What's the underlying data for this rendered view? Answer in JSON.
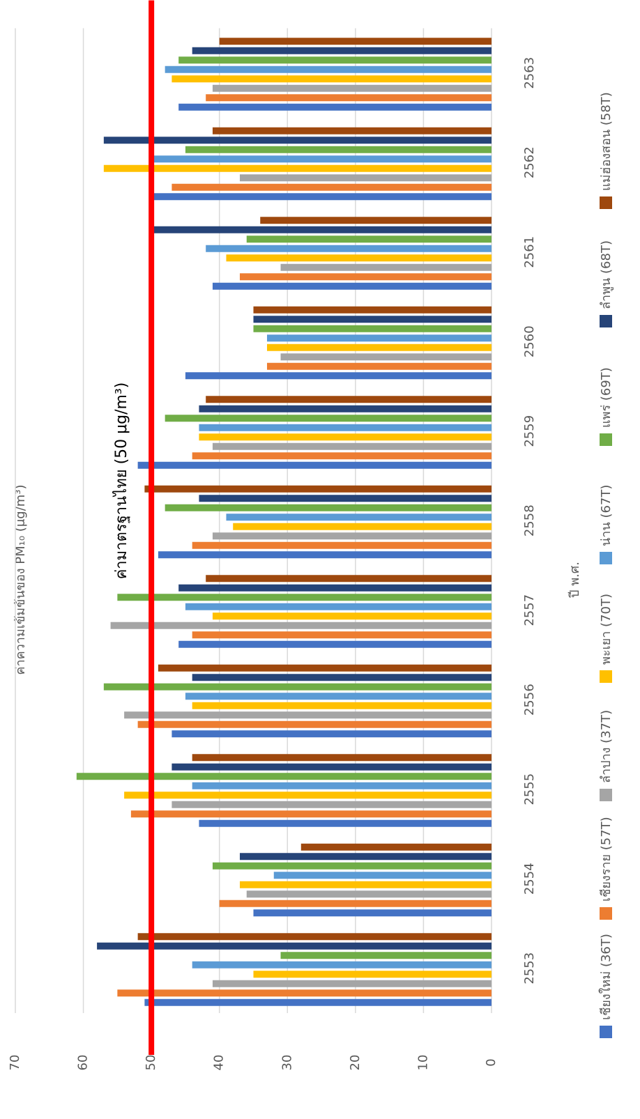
{
  "chart_data": {
    "type": "bar",
    "y_label": "ค่าความเข้มข้นของ PM₁₀ (μg/m³)",
    "x_label": "ปี พ.ศ.",
    "annotation": "ค่ามาตรฐานไทย (50 μg/m³)",
    "reference_line": {
      "value": 50,
      "color": "#ff0000"
    },
    "categories": [
      "2553",
      "2554",
      "2555",
      "2556",
      "2557",
      "2558",
      "2559",
      "2560",
      "2561",
      "2562",
      "2563"
    ],
    "series": [
      {
        "name": "เชียงใหม่ (36T)",
        "color": "#4472c4",
        "values": [
          51,
          35,
          43,
          47,
          46,
          49,
          52,
          45,
          41,
          50,
          46
        ]
      },
      {
        "name": "เชียงราย (57T)",
        "color": "#ed7d31",
        "values": [
          55,
          40,
          53,
          52,
          44,
          44,
          44,
          33,
          37,
          47,
          42
        ]
      },
      {
        "name": "ลำปาง (37T)",
        "color": "#a5a5a5",
        "values": [
          41,
          36,
          47,
          54,
          56,
          41,
          41,
          31,
          31,
          37,
          41
        ]
      },
      {
        "name": "พะเยา (70T)",
        "color": "#ffc000",
        "values": [
          35,
          37,
          54,
          44,
          41,
          38,
          43,
          33,
          39,
          57,
          47
        ]
      },
      {
        "name": "น่าน (67T)",
        "color": "#5b9bd5",
        "values": [
          44,
          32,
          44,
          45,
          45,
          39,
          43,
          33,
          42,
          50,
          48
        ]
      },
      {
        "name": "แพร่ (69T)",
        "color": "#70ad47",
        "values": [
          31,
          41,
          61,
          57,
          55,
          48,
          48,
          35,
          36,
          45,
          46
        ]
      },
      {
        "name": "ลำพูน (68T)",
        "color": "#264478",
        "values": [
          58,
          37,
          47,
          44,
          46,
          43,
          43,
          35,
          50,
          57,
          44
        ]
      },
      {
        "name": "แม่ฮ่องสอน (58T)",
        "color": "#9e480e",
        "values": [
          52,
          28,
          44,
          49,
          42,
          51,
          42,
          35,
          34,
          41,
          40
        ]
      }
    ],
    "ylim": [
      0,
      70
    ],
    "yticks": [
      0,
      10,
      20,
      30,
      40,
      50,
      60,
      70
    ],
    "grid": true
  }
}
